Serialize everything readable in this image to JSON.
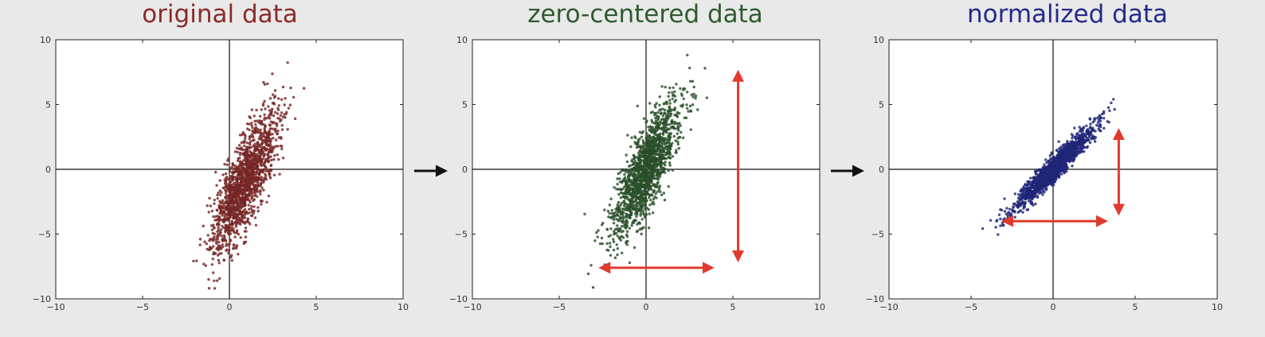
{
  "chart_data": [
    {
      "type": "scatter",
      "title": "original data",
      "color": "#8b2a2a",
      "xlim": [
        -10,
        10
      ],
      "ylim": [
        -10,
        10
      ],
      "xticks": [
        "−10",
        "−5",
        "0",
        "5",
        "10"
      ],
      "yticks": [
        "10",
        "5",
        "0",
        "−5",
        "−10"
      ],
      "cloud": {
        "mean": [
          0.9,
          -0.9
        ],
        "slope": 2.1,
        "spread_along": 1.25,
        "spread_perp": 1.05,
        "n": 1500
      },
      "arrows": []
    },
    {
      "type": "scatter",
      "title": "zero-centered data",
      "color": "#2e5b2e",
      "xlim": [
        -10,
        10
      ],
      "ylim": [
        -10,
        10
      ],
      "xticks": [
        "−10",
        "−5",
        "0",
        "5",
        "10"
      ],
      "yticks": [
        "10",
        "5",
        "0",
        "−5",
        "−10"
      ],
      "cloud": {
        "mean": [
          0,
          0
        ],
        "slope": 2.1,
        "spread_along": 1.25,
        "spread_perp": 1.05,
        "n": 1500
      },
      "arrows": [
        {
          "from": [
            -2.6,
            -7.6
          ],
          "to": [
            3.8,
            -7.6
          ],
          "color": "#e03a2e"
        },
        {
          "from": [
            5.3,
            -7.0
          ],
          "to": [
            5.3,
            7.5
          ],
          "color": "#e03a2e"
        }
      ]
    },
    {
      "type": "scatter",
      "title": "normalized data",
      "color": "#232a8c",
      "xlim": [
        -10,
        10
      ],
      "ylim": [
        -10,
        10
      ],
      "xticks": [
        "−10",
        "−5",
        "0",
        "5",
        "10"
      ],
      "yticks": [
        "10",
        "5",
        "0",
        "−5",
        "−10"
      ],
      "cloud": {
        "mean": [
          0,
          0
        ],
        "slope": 0.85,
        "spread_along": 1.05,
        "spread_perp": 0.55,
        "n": 1500
      },
      "arrows": [
        {
          "from": [
            -3.0,
            -4.0
          ],
          "to": [
            3.2,
            -4.0
          ],
          "color": "#e03a2e"
        },
        {
          "from": [
            4.0,
            -3.4
          ],
          "to": [
            4.0,
            3.0
          ],
          "color": "#e03a2e"
        }
      ]
    }
  ],
  "connectors": [
    {
      "from_chart": 0,
      "to_chart": 1,
      "color": "#111111"
    },
    {
      "from_chart": 1,
      "to_chart": 2,
      "color": "#111111"
    }
  ]
}
